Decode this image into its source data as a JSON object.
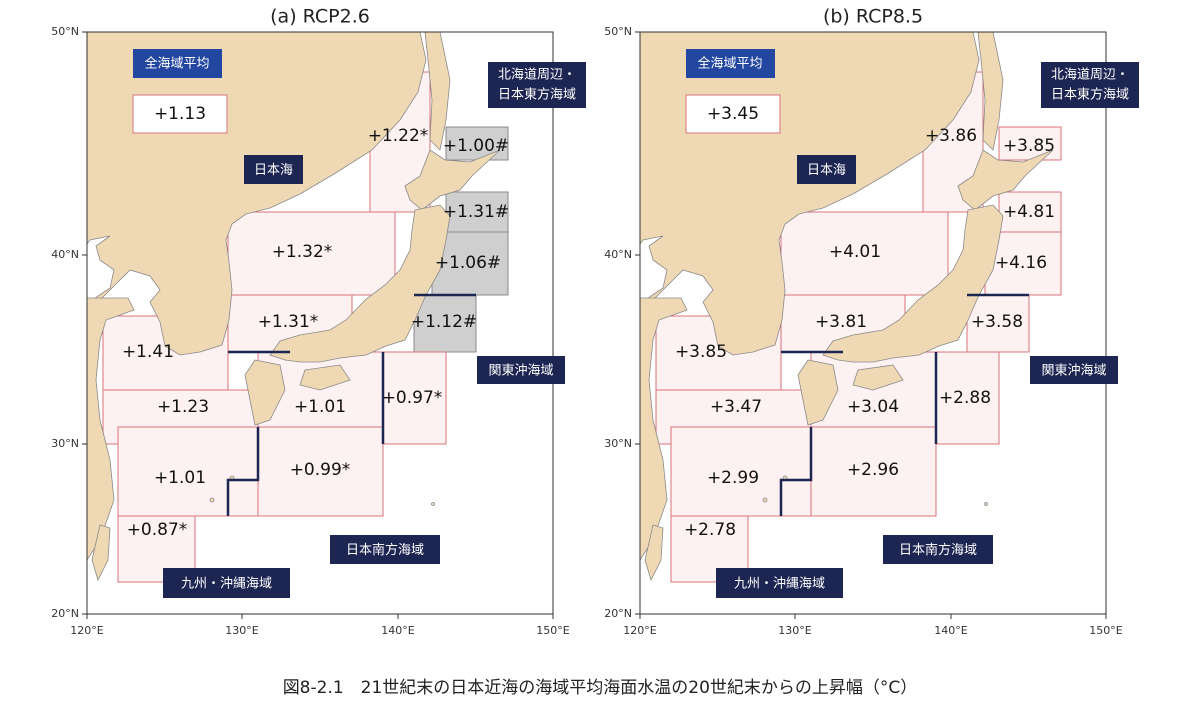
{
  "panels": [
    {
      "title": "(a) RCP2.6",
      "xticks": [
        "120°E",
        "130°E",
        "140°E",
        "150°E"
      ],
      "yticks": [
        "50°N",
        "40°N",
        "30°N",
        "20°N"
      ],
      "avg_label": "全海域平均",
      "avg_value": "+1.13",
      "area_labels": {
        "japan_sea": "日本海",
        "hokkaido": [
          "北海道周辺・",
          "日本東方海域"
        ],
        "kanto": "関東沖海域",
        "south": "日本南方海域",
        "kyushu": "九州・沖縄海域"
      },
      "regions": [
        "+1.22*",
        "+1.00#",
        "+1.31#",
        "+1.32*",
        "+1.06#",
        "+1.31*",
        "+1.12#",
        "+1.41",
        "+0.97*",
        "+1.23",
        "+1.01",
        "+1.01",
        "+0.99*",
        "+0.87*"
      ]
    },
    {
      "title": "(b) RCP8.5",
      "xticks": [
        "120°E",
        "130°E",
        "140°E",
        "150°E"
      ],
      "yticks": [
        "50°N",
        "40°N",
        "30°N",
        "20°N"
      ],
      "avg_label": "全海域平均",
      "avg_value": "+3.45",
      "area_labels": {
        "japan_sea": "日本海",
        "hokkaido": [
          "北海道周辺・",
          "日本東方海域"
        ],
        "kanto": "関東沖海域",
        "south": "日本南方海域",
        "kyushu": "九州・沖縄海域"
      },
      "regions": [
        "+3.86",
        "+3.85",
        "+4.81",
        "+4.01",
        "+4.16",
        "+3.81",
        "+3.58",
        "+3.85",
        "+2.88",
        "+3.47",
        "+3.04",
        "+2.99",
        "+2.96",
        "+2.78"
      ]
    }
  ],
  "caption": "図8-2.1　21世紀末の日本近海の海域平均海面水温の20世紀末からの上昇幅（°C）"
}
